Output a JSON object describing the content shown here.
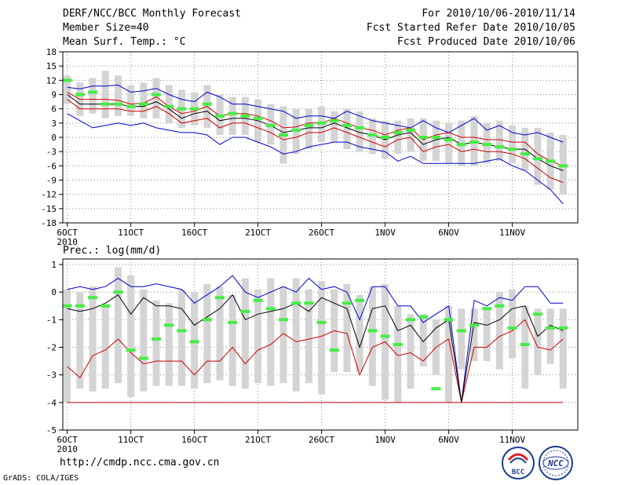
{
  "header": {
    "title": "DERF/NCC/BCC Monthly Forecast",
    "member_size": "Member Size=40",
    "variable": "Mean Surf. Temp.: °C",
    "period": "For 2010/10/06-2010/11/14",
    "started": "Fcst Started Refer Date 2010/10/05",
    "produced": "Fcst Produced Date 2010/10/06"
  },
  "footer": {
    "url": "http://cmdp.ncc.cma.gov.cn",
    "credit": "GrADS: COLA/IGES",
    "logo_bcc": "BCC",
    "logo_ncc": "NCC"
  },
  "colors": {
    "max": "#0000cc",
    "min": "#cc0000",
    "mean": "#000000",
    "obs": "#44ee44",
    "box": "#d4d4d4",
    "grid": "#888888"
  },
  "chart_data": [
    {
      "type": "box-line",
      "title": "Mean Surf. Temp.: °C",
      "ylim": [
        -18,
        18
      ],
      "yticks": [
        18,
        15,
        12,
        9,
        6,
        3,
        0,
        -3,
        -6,
        -9,
        -12,
        -15,
        -18
      ],
      "xticks": [
        {
          "day": 1,
          "label": "6OCT",
          "sub": "2010"
        },
        {
          "day": 6,
          "label": "11OCT"
        },
        {
          "day": 11,
          "label": "16OCT"
        },
        {
          "day": 16,
          "label": "21OCT"
        },
        {
          "day": 21,
          "label": "26OCT"
        },
        {
          "day": 26,
          "label": "1NOV"
        },
        {
          "day": 31,
          "label": "6NOV"
        },
        {
          "day": 36,
          "label": "11NOV"
        }
      ],
      "days": 40,
      "series": [
        {
          "name": "max",
          "values": [
            10.5,
            10.2,
            10.8,
            10.8,
            11.0,
            9.5,
            9.8,
            10.3,
            9.0,
            8.0,
            7.5,
            9.5,
            8.5,
            7.0,
            7.0,
            6.5,
            6.0,
            5.5,
            4.0,
            4.5,
            4.5,
            4.0,
            5.5,
            4.5,
            3.5,
            3.0,
            2.5,
            2.0,
            3.5,
            2.0,
            1.0,
            2.5,
            4.0,
            1.5,
            2.5,
            1.0,
            0.5,
            1.0,
            0.0,
            -1.0
          ]
        },
        {
          "name": "mean",
          "values": [
            9.0,
            7.0,
            7.0,
            7.0,
            7.0,
            6.5,
            6.5,
            7.5,
            6.0,
            4.0,
            5.0,
            5.5,
            3.5,
            4.0,
            4.0,
            3.5,
            2.5,
            1.0,
            1.5,
            2.0,
            2.0,
            3.0,
            2.0,
            1.0,
            0.5,
            -0.5,
            0.5,
            1.0,
            -1.5,
            -0.5,
            0.0,
            -1.5,
            -1.0,
            -1.5,
            -2.0,
            -2.5,
            -2.5,
            -4.5,
            -6.0,
            -7.0
          ]
        },
        {
          "name": "upper",
          "values": [
            9.5,
            8.0,
            8.0,
            8.0,
            7.8,
            7.0,
            7.2,
            8.5,
            6.5,
            5.0,
            5.5,
            6.5,
            4.5,
            5.0,
            5.0,
            4.5,
            3.5,
            2.0,
            2.2,
            3.0,
            3.0,
            4.0,
            3.0,
            2.0,
            1.5,
            0.5,
            1.5,
            2.0,
            -0.5,
            0.5,
            1.0,
            0.0,
            0.0,
            -0.5,
            -0.5,
            -1.0,
            -1.0,
            -3.5,
            -5.0,
            -6.0
          ]
        },
        {
          "name": "lower",
          "values": [
            8.0,
            6.0,
            6.0,
            6.0,
            6.0,
            5.5,
            5.5,
            6.5,
            5.0,
            3.0,
            3.5,
            4.0,
            2.0,
            3.0,
            3.0,
            2.0,
            1.0,
            -0.5,
            0.0,
            1.0,
            1.0,
            2.0,
            1.0,
            0.0,
            -1.0,
            -2.0,
            -0.5,
            0.0,
            -3.0,
            -2.0,
            -1.5,
            -3.0,
            -2.5,
            -3.0,
            -3.0,
            -3.5,
            -4.5,
            -6.5,
            -8.5,
            -9.5
          ]
        },
        {
          "name": "min",
          "values": [
            5.0,
            3.5,
            2.0,
            2.5,
            3.0,
            2.5,
            3.0,
            2.0,
            1.5,
            1.0,
            1.0,
            0.5,
            -1.5,
            0.0,
            0.0,
            -1.0,
            -2.0,
            -3.5,
            -3.0,
            -2.0,
            -1.5,
            -1.0,
            -1.0,
            -2.0,
            -2.5,
            -3.0,
            -5.0,
            -4.0,
            -5.5,
            -5.5,
            -5.5,
            -5.5,
            -5.5,
            -5.0,
            -4.5,
            -6.0,
            -7.0,
            -9.0,
            -11.0,
            -14.0
          ]
        },
        {
          "name": "obs",
          "values": [
            12.0,
            9.0,
            9.5,
            7.0,
            7.0,
            6.5,
            7.0,
            9.0,
            6.5,
            6.0,
            6.0,
            7.0,
            4.5,
            5.0,
            4.5,
            4.0,
            2.5,
            0.5,
            1.5,
            2.5,
            3.0,
            3.5,
            2.5,
            2.0,
            0.5,
            0.0,
            1.0,
            1.5,
            0.0,
            0.0,
            -0.5,
            -1.5,
            -1.0,
            -1.5,
            -2.0,
            -2.5,
            -3.5,
            -4.5,
            -5.0,
            -6.0
          ]
        },
        {
          "name": "box_hi",
          "values": [
            13.0,
            11.5,
            12.5,
            14.0,
            13.0,
            11.0,
            11.5,
            12.5,
            11.0,
            10.0,
            9.5,
            11.0,
            9.0,
            8.5,
            8.5,
            8.0,
            7.0,
            6.5,
            6.0,
            6.0,
            6.5,
            5.5,
            6.0,
            5.5,
            4.0,
            3.5,
            3.5,
            4.0,
            4.0,
            3.5,
            3.0,
            3.5,
            4.5,
            3.0,
            3.5,
            2.5,
            2.0,
            2.0,
            1.0,
            0.5
          ]
        },
        {
          "name": "box_lo",
          "values": [
            7.0,
            4.5,
            5.0,
            4.0,
            4.5,
            4.5,
            4.0,
            4.0,
            3.0,
            2.0,
            2.5,
            2.0,
            0.5,
            0.5,
            0.5,
            -1.0,
            -1.5,
            -5.5,
            -3.5,
            -2.5,
            -1.0,
            -1.0,
            -2.5,
            -3.0,
            -3.5,
            -4.5,
            -3.5,
            -3.0,
            -5.0,
            -5.0,
            -5.5,
            -6.0,
            -6.0,
            -5.5,
            -5.0,
            -5.5,
            -7.0,
            -10.0,
            -11.0,
            -12.0
          ]
        }
      ]
    },
    {
      "type": "box-line",
      "title": "Prec.: log(mm/d)",
      "ylim": [
        -5,
        1.2
      ],
      "yticks": [
        1,
        0,
        -1,
        -2,
        -3,
        -4,
        -5
      ],
      "xticks": [
        {
          "day": 1,
          "label": "6OCT",
          "sub": "2010"
        },
        {
          "day": 6,
          "label": "11OCT"
        },
        {
          "day": 11,
          "label": "16OCT"
        },
        {
          "day": 16,
          "label": "21OCT"
        },
        {
          "day": 21,
          "label": "26OCT"
        },
        {
          "day": 26,
          "label": "1NOV"
        },
        {
          "day": 31,
          "label": "6NOV"
        },
        {
          "day": 36,
          "label": "11NOV"
        }
      ],
      "days": 40,
      "series": [
        {
          "name": "max",
          "values": [
            0.1,
            0.2,
            0.1,
            0.2,
            0.5,
            0.2,
            0.2,
            0.3,
            0.2,
            0.1,
            -0.4,
            -0.1,
            0.2,
            0.6,
            0.0,
            -0.2,
            0.0,
            0.2,
            0.0,
            0.5,
            0.1,
            0.2,
            0.0,
            -1.0,
            0.2,
            0.2,
            -0.5,
            -0.5,
            -1.1,
            -0.8,
            -0.5,
            -4.0,
            -0.3,
            -0.5,
            -0.2,
            -0.3,
            0.2,
            0.2,
            -0.4,
            -0.4
          ]
        },
        {
          "name": "mean",
          "values": [
            -0.6,
            -0.7,
            -0.6,
            -0.4,
            -0.1,
            -0.8,
            -0.2,
            -0.5,
            -0.5,
            -0.6,
            -1.2,
            -0.9,
            -0.6,
            -0.1,
            -1.0,
            -0.8,
            -0.7,
            -0.6,
            -0.4,
            -0.7,
            -0.2,
            -0.4,
            -0.6,
            -2.0,
            -0.6,
            -0.5,
            -1.4,
            -1.2,
            -1.8,
            -1.3,
            -1.0,
            -4.0,
            -1.1,
            -1.2,
            -1.0,
            -0.6,
            -0.5,
            -1.6,
            -1.2,
            -1.4
          ]
        },
        {
          "name": "min",
          "values": [
            -2.7,
            -3.1,
            -2.3,
            -2.1,
            -1.7,
            -2.2,
            -2.6,
            -2.5,
            -2.5,
            -2.5,
            -3.0,
            -2.5,
            -2.5,
            -2.0,
            -2.6,
            -2.1,
            -1.9,
            -1.5,
            -1.8,
            -1.7,
            -1.6,
            -1.4,
            -1.5,
            -3.0,
            -2.0,
            -1.8,
            -2.3,
            -2.2,
            -2.5,
            -2.0,
            -1.7,
            -4.0,
            -2.0,
            -2.0,
            -1.6,
            -1.4,
            -1.0,
            -2.0,
            -2.1,
            -1.7
          ]
        },
        {
          "name": "obs",
          "values": [
            -0.5,
            -0.5,
            -0.2,
            -0.5,
            0.0,
            -2.1,
            -2.4,
            -1.7,
            -1.2,
            -1.4,
            -1.8,
            -1.0,
            -0.2,
            -1.1,
            -0.7,
            -0.3,
            -0.6,
            -1.0,
            -0.4,
            -0.4,
            -1.1,
            -2.1,
            -0.4,
            -0.3,
            -1.4,
            -1.6,
            -1.9,
            -1.0,
            -0.9,
            -3.5,
            -1.0,
            -1.4,
            -1.2,
            -0.6,
            -0.5,
            -1.3,
            -1.9,
            -0.8,
            -1.3,
            -1.3
          ]
        },
        {
          "name": "baseline",
          "values": [
            -4.0,
            -4.0
          ]
        },
        {
          "name": "box_hi",
          "values": [
            0.1,
            0.0,
            0.2,
            -0.5,
            0.9,
            0.6,
            0.1,
            -0.3,
            -0.4,
            0.1,
            0.0,
            0.3,
            0.2,
            -0.1,
            0.5,
            0.1,
            0.5,
            0.2,
            0.5,
            0.1,
            0.4,
            0.1,
            0.3,
            -0.1,
            0.2,
            0.3,
            -0.5,
            -0.8,
            -0.8,
            -1.0,
            -0.5,
            -0.6,
            -0.6,
            -0.6,
            0.0,
            0.1,
            -0.5,
            -0.6,
            -0.6,
            -0.6
          ]
        },
        {
          "name": "box_lo",
          "values": [
            -4.0,
            -3.5,
            -3.6,
            -3.5,
            -3.3,
            -3.8,
            -3.6,
            -3.4,
            -3.4,
            -3.4,
            -3.5,
            -3.3,
            -3.2,
            -3.4,
            -3.5,
            -3.3,
            -3.4,
            -3.3,
            -3.6,
            -3.3,
            -3.7,
            -2.9,
            -2.9,
            -2.9,
            -3.4,
            -3.9,
            -4.0,
            -3.5,
            -2.7,
            -3.0,
            -4.0,
            -2.8,
            -2.5,
            -2.5,
            -2.8,
            -2.4,
            -3.5,
            -3.0,
            -2.6,
            -3.5
          ]
        }
      ]
    }
  ]
}
